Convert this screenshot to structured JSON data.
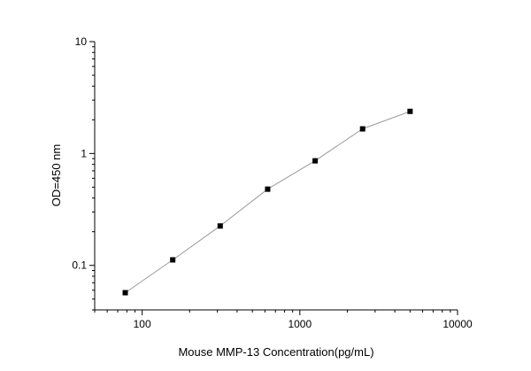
{
  "chart_data": {
    "type": "line",
    "title": "",
    "xlabel": "Mouse MMP-13 Concentration(pg/mL)",
    "ylabel": "OD=450 nm",
    "x_scale": "log",
    "y_scale": "log",
    "xlim": [
      50,
      10000
    ],
    "ylim": [
      0.04,
      10
    ],
    "x_ticks": [
      {
        "value": 100,
        "label": "100"
      },
      {
        "value": 1000,
        "label": "1000"
      },
      {
        "value": 10000,
        "label": "10000"
      }
    ],
    "y_ticks": [
      {
        "value": 0.1,
        "label": "0.1"
      },
      {
        "value": 1,
        "label": "1"
      },
      {
        "value": 10,
        "label": "10"
      }
    ],
    "grid": false,
    "legend": "none",
    "series": [
      {
        "x": [
          78.125,
          156.25,
          312.5,
          625,
          1250,
          2500,
          5000
        ],
        "y": [
          0.057,
          0.112,
          0.225,
          0.48,
          0.86,
          1.66,
          2.38
        ],
        "marker": "square",
        "color": "#000000",
        "line_color": "#999999"
      }
    ]
  }
}
